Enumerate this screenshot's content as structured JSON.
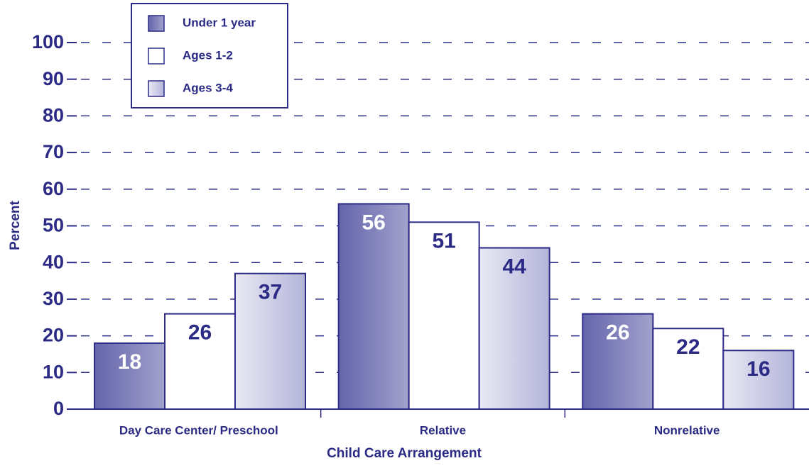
{
  "chart_data": {
    "type": "bar",
    "x_label": "Child Care Arrangement",
    "y_label": "Percent",
    "categories": [
      "Day Care Center/ Preschool",
      "Relative",
      "Nonrelative"
    ],
    "series": [
      {
        "name": "Under 1 year",
        "color": "#6464ac",
        "values": [
          18,
          56,
          26
        ]
      },
      {
        "name": "Ages 1-2",
        "color": "#ffffff",
        "values": [
          26,
          51,
          22
        ]
      },
      {
        "name": "Ages 3-4",
        "color": "#b4b4da",
        "values": [
          37,
          44,
          16
        ]
      }
    ],
    "ylim": [
      0,
      100
    ],
    "yticks": [
      0,
      10,
      20,
      30,
      40,
      50,
      60,
      70,
      80,
      90,
      100
    ],
    "grid": true,
    "legend": "upper left"
  }
}
